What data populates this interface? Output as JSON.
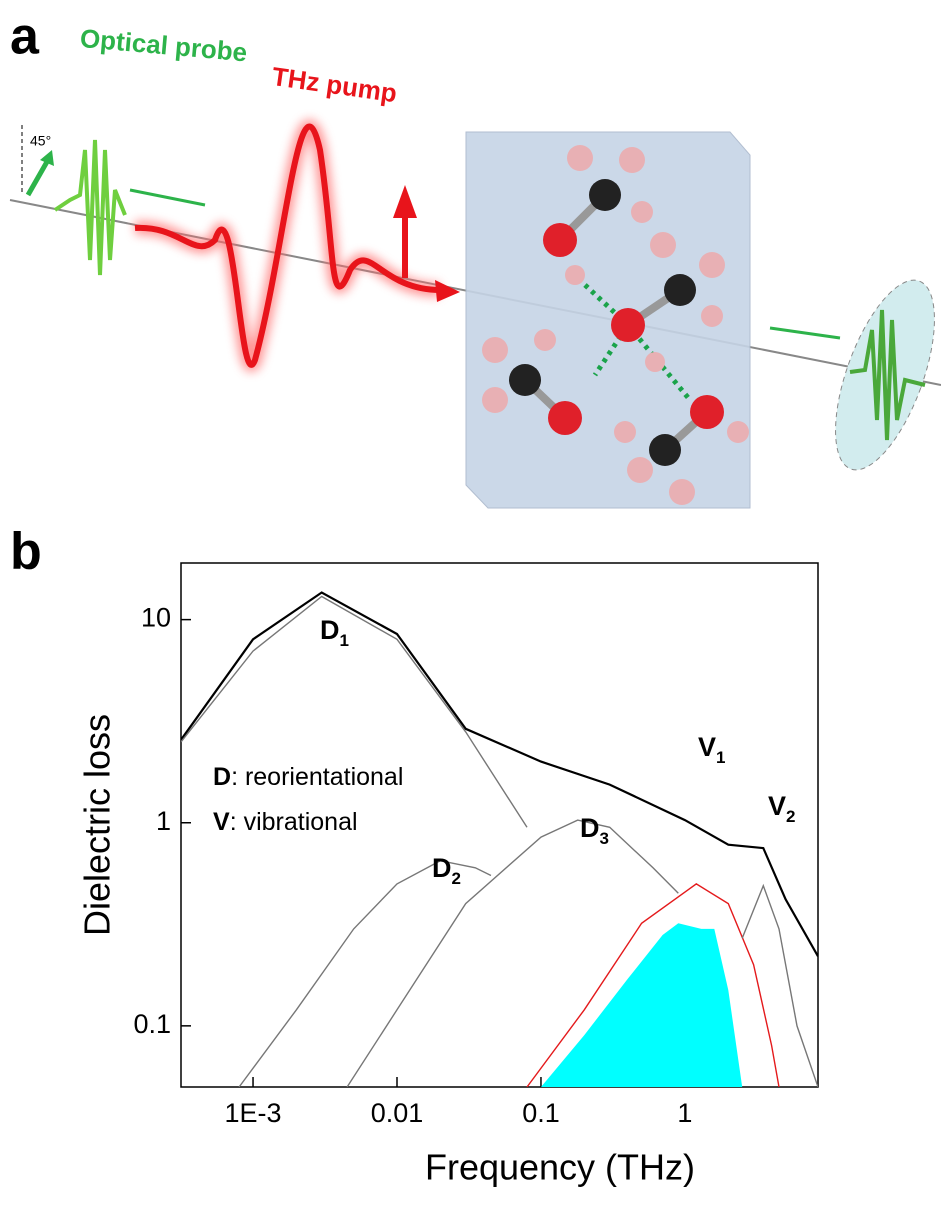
{
  "panel_a": {
    "label": "a",
    "probe_label": "Optical probe",
    "pump_label": "THz pump",
    "angle_label": "45°"
  },
  "chart_data": {
    "type": "line",
    "panel_label": "b",
    "xlabel": "Frequency (THz)",
    "ylabel": "Dielectric loss",
    "xscale": "log",
    "yscale": "log",
    "xlim": [
      0.000316,
      8.4
    ],
    "ylim": [
      0.05,
      19
    ],
    "xticks": [
      {
        "value": 0.001,
        "label": "1E-3"
      },
      0.01,
      0.1,
      1
    ],
    "yticks": [
      0.1,
      1,
      10
    ],
    "legend_text": [
      {
        "key": "D",
        "label": ": reorientational"
      },
      {
        "key": "V",
        "label": ": vibrational"
      }
    ],
    "annotations": [
      {
        "letter": "D",
        "sub": "1"
      },
      {
        "letter": "D",
        "sub": "2"
      },
      {
        "letter": "D",
        "sub": "3"
      },
      {
        "letter": "V",
        "sub": "1"
      },
      {
        "letter": "V",
        "sub": "2"
      }
    ],
    "series": [
      {
        "color": "#000000",
        "x": [
          0.000316,
          0.001,
          0.003,
          0.01,
          0.03,
          0.1,
          0.3,
          1,
          2,
          3.5,
          5,
          8.4
        ],
        "values": [
          2.56,
          8,
          13.6,
          8.5,
          2.9,
          2.0,
          1.54,
          1.03,
          0.78,
          0.75,
          0.42,
          0.22
        ]
      },
      {
        "color": "#777777",
        "x": [
          0.000316,
          0.001,
          0.003,
          0.01,
          0.03,
          0.08
        ],
        "values": [
          2.5,
          7,
          13,
          8,
          2.8,
          0.95
        ]
      },
      {
        "color": "#777777",
        "x": [
          0.0008,
          0.002,
          0.005,
          0.01,
          0.02,
          0.035,
          0.045
        ],
        "values": [
          0.05,
          0.12,
          0.3,
          0.5,
          0.65,
          0.6,
          0.55
        ]
      },
      {
        "color": "#777777",
        "x": [
          0.0045,
          0.01,
          0.03,
          0.1,
          0.18,
          0.3,
          0.6,
          0.9
        ],
        "values": [
          0.05,
          0.12,
          0.4,
          0.85,
          1.03,
          0.95,
          0.6,
          0.45
        ]
      },
      {
        "color": "#e41a1c",
        "x": [
          0.08,
          0.2,
          0.5,
          1.2,
          2,
          3,
          4,
          4.5
        ],
        "values": [
          0.05,
          0.12,
          0.32,
          0.5,
          0.4,
          0.2,
          0.08,
          0.05
        ]
      },
      {
        "color": "#777777",
        "x": [
          2.5,
          3.5,
          4.5,
          6,
          8.4
        ],
        "values": [
          0.27,
          0.49,
          0.3,
          0.1,
          0.05
        ]
      }
    ],
    "area": {
      "color": "#00ffff",
      "x": [
        0.1,
        0.2,
        0.4,
        0.7,
        0.9,
        1.3,
        1.6,
        2,
        2.5
      ],
      "values": [
        0.05,
        0.09,
        0.17,
        0.28,
        0.32,
        0.3,
        0.3,
        0.15,
        0.05
      ]
    }
  }
}
